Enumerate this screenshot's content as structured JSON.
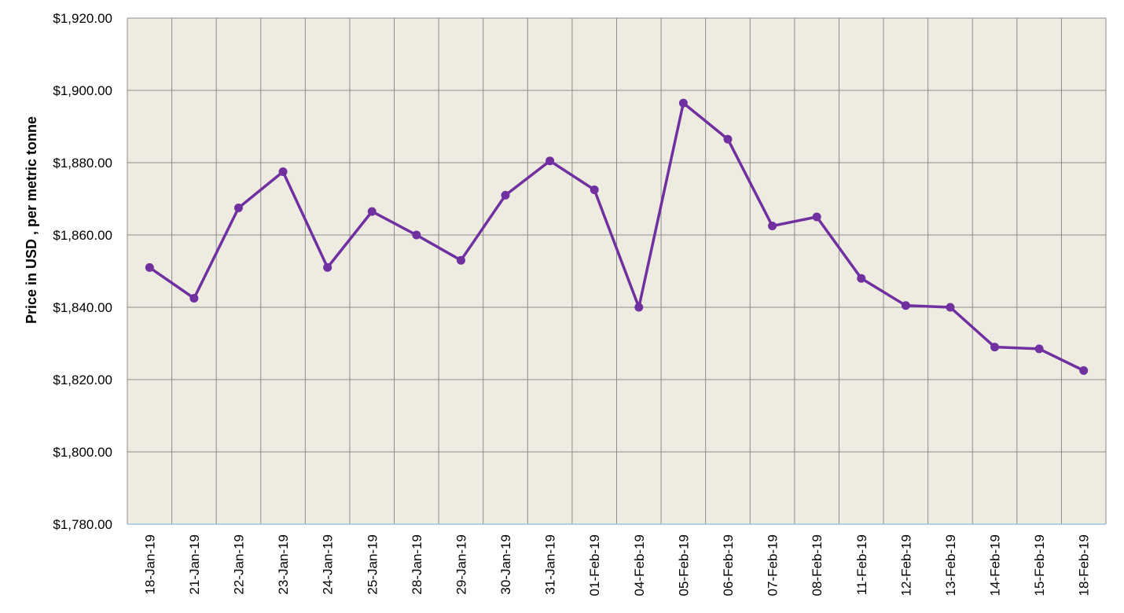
{
  "chart_data": {
    "type": "line",
    "title": "",
    "xlabel": "",
    "ylabel": "Price in USD , per metric tonne",
    "ylim": [
      1780,
      1920
    ],
    "y_ticks": [
      1780,
      1800,
      1820,
      1840,
      1860,
      1880,
      1900,
      1920
    ],
    "y_tick_labels": [
      "$1,780.00",
      "$1,800.00",
      "$1,820.00",
      "$1,840.00",
      "$1,860.00",
      "$1,880.00",
      "$1,900.00",
      "$1,920.00"
    ],
    "grid": true,
    "legend": "none",
    "categories": [
      "18-Jan-19",
      "21-Jan-19",
      "22-Jan-19",
      "23-Jan-19",
      "24-Jan-19",
      "25-Jan-19",
      "28-Jan-19",
      "29-Jan-19",
      "30-Jan-19",
      "31-Jan-19",
      "01-Feb-19",
      "04-Feb-19",
      "05-Feb-19",
      "06-Feb-19",
      "07-Feb-19",
      "08-Feb-19",
      "11-Feb-19",
      "12-Feb-19",
      "13-Feb-19",
      "14-Feb-19",
      "15-Feb-19",
      "18-Feb-19"
    ],
    "series": [
      {
        "values": [
          1851,
          1842.5,
          1867.5,
          1877.5,
          1851,
          1866.5,
          1860,
          1853,
          1871,
          1880.5,
          1872.5,
          1840,
          1896.5,
          1886.5,
          1862.5,
          1865,
          1848,
          1840.5,
          1840,
          1829,
          1828.5,
          1822.5
        ],
        "color": "#7030a0"
      }
    ],
    "colors": {
      "plot_background": "#eeebe1",
      "grid": "#8c8c8c",
      "x_axis": "#9dc3e6"
    }
  }
}
